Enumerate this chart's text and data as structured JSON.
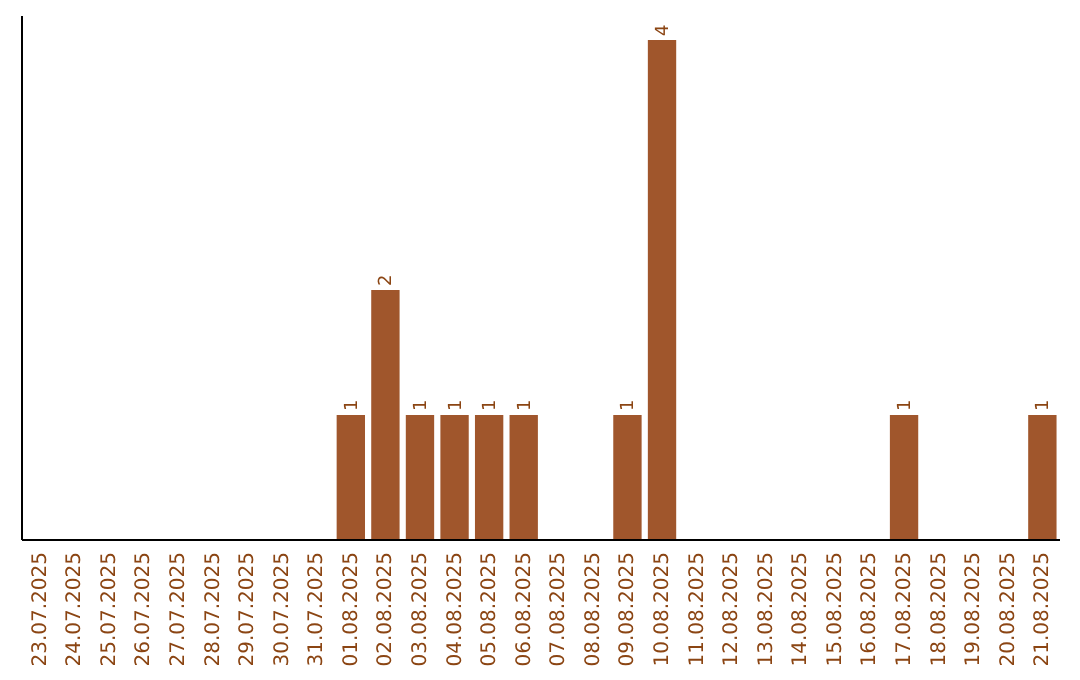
{
  "chart_data": {
    "type": "bar",
    "categories": [
      "23.07.2025",
      "24.07.2025",
      "25.07.2025",
      "26.07.2025",
      "27.07.2025",
      "28.07.2025",
      "29.07.2025",
      "30.07.2025",
      "31.07.2025",
      "01.08.2025",
      "02.08.2025",
      "03.08.2025",
      "04.08.2025",
      "05.08.2025",
      "06.08.2025",
      "07.08.2025",
      "08.08.2025",
      "09.08.2025",
      "10.08.2025",
      "11.08.2025",
      "12.08.2025",
      "13.08.2025",
      "14.08.2025",
      "15.08.2025",
      "16.08.2025",
      "17.08.2025",
      "18.08.2025",
      "19.08.2025",
      "20.08.2025",
      "21.08.2025"
    ],
    "values": [
      0,
      0,
      0,
      0,
      0,
      0,
      0,
      0,
      0,
      1,
      2,
      1,
      1,
      1,
      1,
      0,
      0,
      1,
      4,
      0,
      0,
      0,
      0,
      0,
      0,
      1,
      0,
      0,
      0,
      1
    ],
    "value_labels": [
      null,
      null,
      null,
      null,
      null,
      null,
      null,
      null,
      null,
      "1",
      "2",
      "1",
      "1",
      "1",
      "1",
      null,
      null,
      "1",
      "4",
      null,
      null,
      null,
      null,
      null,
      null,
      "1",
      null,
      null,
      null,
      "1"
    ],
    "color": "#a0562c"
  }
}
